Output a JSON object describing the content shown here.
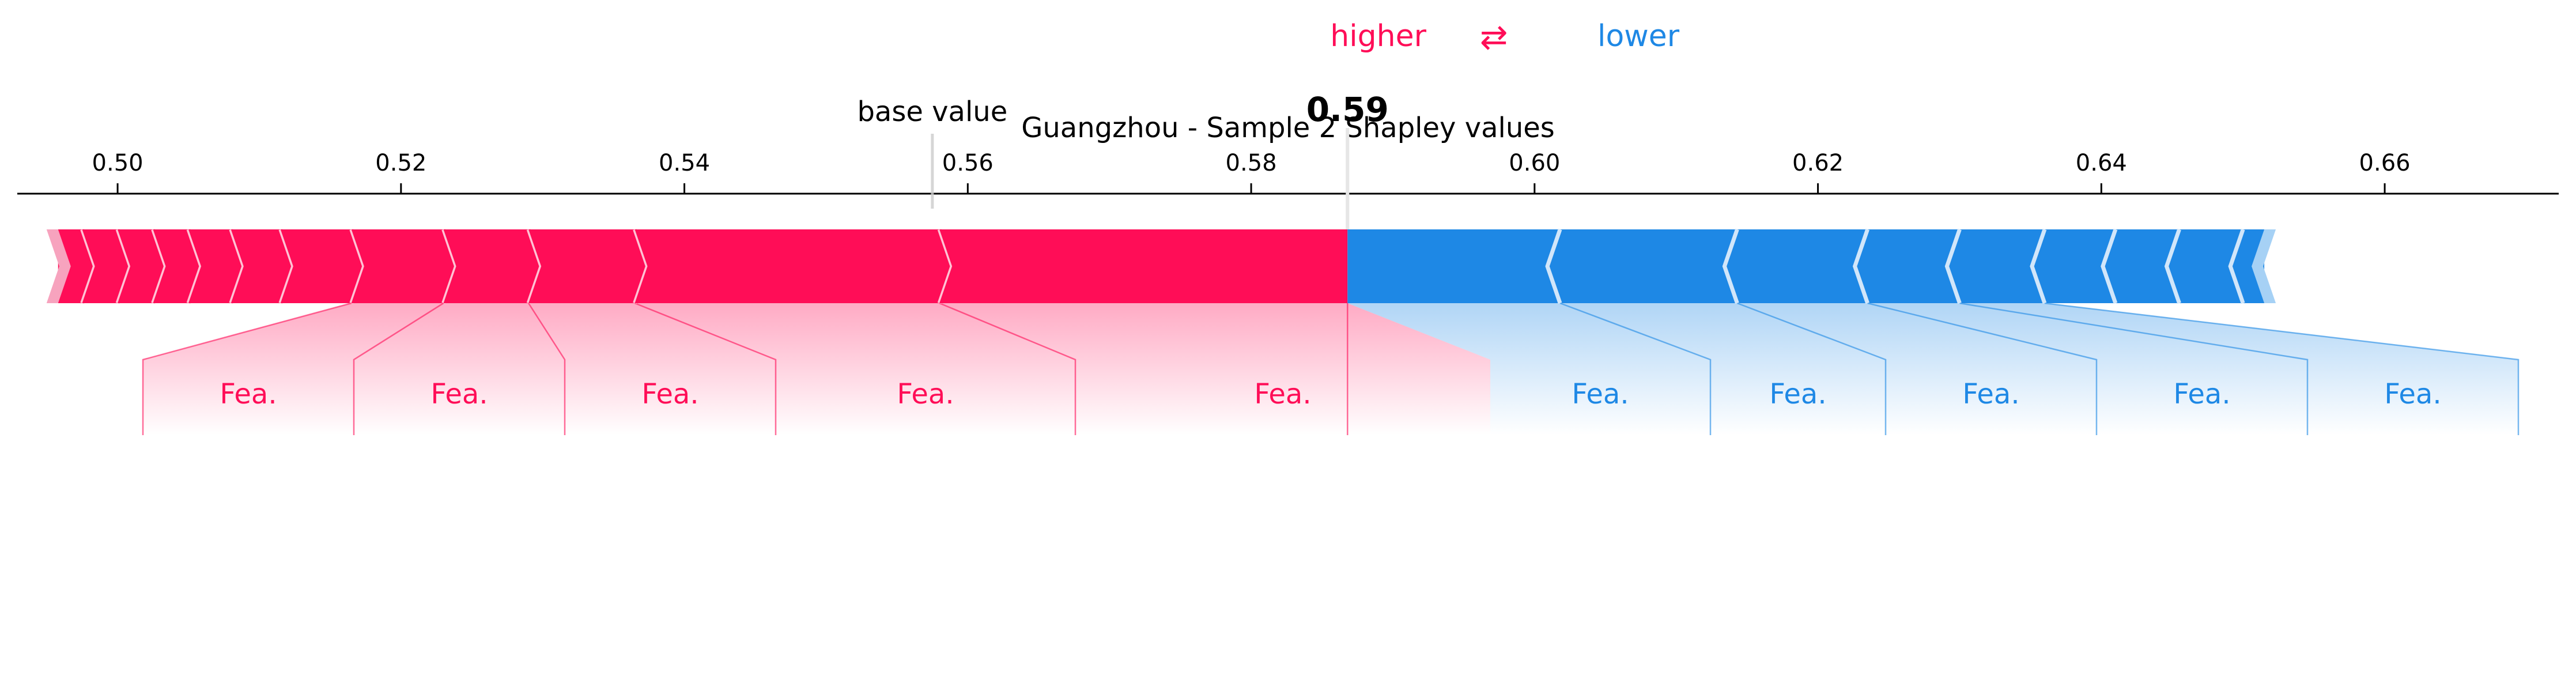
{
  "legend": {
    "higher_label": "higher",
    "arrows": "⇄",
    "lower_label": "lower"
  },
  "title": "Guangzhou - Sample 2 Shapley values",
  "base_value_label": "base value",
  "output_value_label": "0.59",
  "colors": {
    "positive": "#ff0d57",
    "negative": "#1e88e5",
    "positive_light": "#f7a3be",
    "negative_light": "#a6d1f5",
    "separator": "#ffc3d5",
    "axis": "#000000"
  },
  "chart_data": {
    "type": "force",
    "title": "Guangzhou - Sample 2 Shapley values",
    "xlim": [
      0.4917,
      0.6735
    ],
    "ticks": [
      0.5,
      0.52,
      0.54,
      0.56,
      0.58,
      0.6,
      0.62,
      0.64,
      0.66
    ],
    "tick_labels": [
      "0.50",
      "0.52",
      "0.54",
      "0.56",
      "0.58",
      "0.60",
      "0.62",
      "0.64",
      "0.66"
    ],
    "base_value": 0.5575,
    "output_value": 0.5868,
    "positive_boundaries": [
      0.4958,
      0.4975,
      0.5,
      0.5025,
      0.505,
      0.508,
      0.5115,
      0.5165,
      0.523,
      0.529,
      0.5365,
      0.558,
      0.5868
    ],
    "negative_boundaries": [
      0.5868,
      0.6018,
      0.6143,
      0.6235,
      0.63,
      0.636,
      0.641,
      0.6455,
      0.65,
      0.6515
    ],
    "positive_labels": [
      {
        "text": "Fea.",
        "segment": 8
      },
      {
        "text": "Fea.",
        "segment": 9
      },
      {
        "text": "Fea.",
        "segment": 10
      },
      {
        "text": "Fea.",
        "segment": 11
      },
      {
        "text": "Fea.",
        "segment": 12
      }
    ],
    "negative_labels": [
      {
        "text": "Fea.",
        "segment": 1
      },
      {
        "text": "Fea.",
        "segment": 2
      },
      {
        "text": "Fea.",
        "segment": 3
      },
      {
        "text": "Fea.",
        "segment": 4
      },
      {
        "text": "Fea.",
        "segment": 5
      }
    ]
  }
}
